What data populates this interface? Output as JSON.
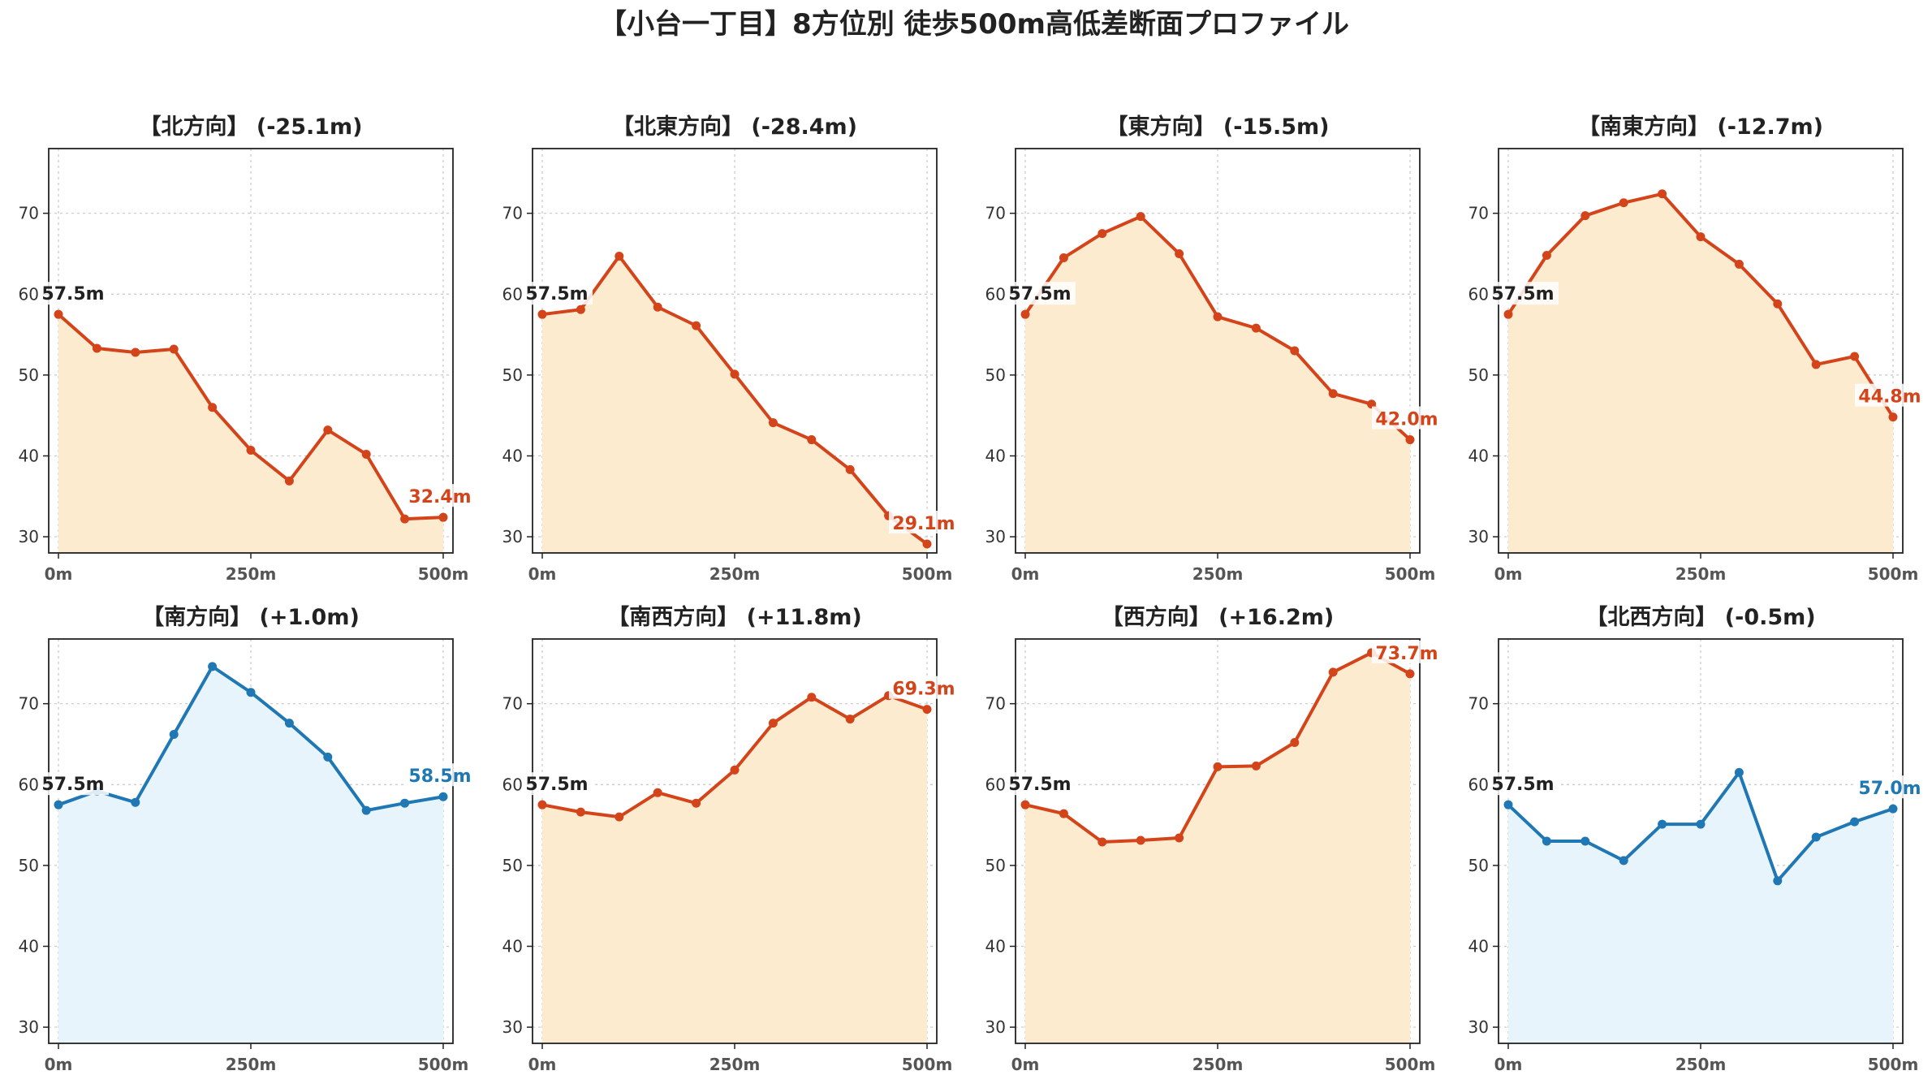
{
  "title": "【小台一丁目】8方位別 徒歩500m高低差断面プロファイル",
  "colors": {
    "down_line": "#d4441b",
    "down_fill": "#fdebd0",
    "up_line": "#1f77b4",
    "up_fill": "#e8f4fb",
    "start_label": "#222222"
  },
  "chart_data": [
    {
      "type": "area",
      "title": "【北方向】 (-25.1m)",
      "x_ticks": [
        "0m",
        "250m",
        "500m"
      ],
      "y_ticks": [
        "30",
        "40",
        "50",
        "60",
        "70"
      ],
      "ylim": [
        28,
        78
      ],
      "grid": true,
      "style": "down",
      "x": [
        0,
        50,
        100,
        150,
        200,
        250,
        300,
        350,
        400,
        450,
        500
      ],
      "values": [
        57.5,
        53.3,
        52.8,
        53.2,
        46.0,
        40.7,
        36.9,
        43.2,
        40.2,
        32.2,
        32.4
      ],
      "start_label": "57.5m",
      "end_label": "32.4m"
    },
    {
      "type": "area",
      "title": "【北東方向】 (-28.4m)",
      "x_ticks": [
        "0m",
        "250m",
        "500m"
      ],
      "y_ticks": [
        "30",
        "40",
        "50",
        "60",
        "70"
      ],
      "ylim": [
        28,
        78
      ],
      "grid": true,
      "style": "down",
      "x": [
        0,
        50,
        100,
        150,
        200,
        250,
        300,
        350,
        400,
        450,
        500
      ],
      "values": [
        57.5,
        58.1,
        64.7,
        58.4,
        56.1,
        50.1,
        44.1,
        42.0,
        38.3,
        32.6,
        29.1
      ],
      "start_label": "57.5m",
      "end_label": "29.1m"
    },
    {
      "type": "area",
      "title": "【東方向】 (-15.5m)",
      "x_ticks": [
        "0m",
        "250m",
        "500m"
      ],
      "y_ticks": [
        "30",
        "40",
        "50",
        "60",
        "70"
      ],
      "ylim": [
        28,
        78
      ],
      "grid": true,
      "style": "down",
      "x": [
        0,
        50,
        100,
        150,
        200,
        250,
        300,
        350,
        400,
        450,
        500
      ],
      "values": [
        57.5,
        64.5,
        67.5,
        69.6,
        65.0,
        57.2,
        55.8,
        53.0,
        47.7,
        46.4,
        42.0
      ],
      "start_label": "57.5m",
      "end_label": "42.0m"
    },
    {
      "type": "area",
      "title": "【南東方向】 (-12.7m)",
      "x_ticks": [
        "0m",
        "250m",
        "500m"
      ],
      "y_ticks": [
        "30",
        "40",
        "50",
        "60",
        "70"
      ],
      "ylim": [
        28,
        78
      ],
      "grid": true,
      "style": "down",
      "x": [
        0,
        50,
        100,
        150,
        200,
        250,
        300,
        350,
        400,
        450,
        500
      ],
      "values": [
        57.5,
        64.8,
        69.7,
        71.3,
        72.4,
        67.1,
        63.7,
        58.8,
        51.3,
        52.3,
        44.8
      ],
      "start_label": "57.5m",
      "end_label": "44.8m"
    },
    {
      "type": "area",
      "title": "【南方向】 (+1.0m)",
      "x_ticks": [
        "0m",
        "250m",
        "500m"
      ],
      "y_ticks": [
        "30",
        "40",
        "50",
        "60",
        "70"
      ],
      "ylim": [
        28,
        78
      ],
      "grid": true,
      "style": "up",
      "x": [
        0,
        50,
        100,
        150,
        200,
        250,
        300,
        350,
        400,
        450,
        500
      ],
      "values": [
        57.5,
        59.2,
        57.8,
        66.2,
        74.6,
        71.4,
        67.6,
        63.4,
        56.8,
        57.7,
        58.5
      ],
      "start_label": "57.5m",
      "end_label": "58.5m"
    },
    {
      "type": "area",
      "title": "【南西方向】 (+11.8m)",
      "x_ticks": [
        "0m",
        "250m",
        "500m"
      ],
      "y_ticks": [
        "30",
        "40",
        "50",
        "60",
        "70"
      ],
      "ylim": [
        28,
        78
      ],
      "grid": true,
      "style": "down",
      "x": [
        0,
        50,
        100,
        150,
        200,
        250,
        300,
        350,
        400,
        450,
        500
      ],
      "values": [
        57.5,
        56.6,
        56.0,
        59.0,
        57.7,
        61.8,
        67.6,
        70.8,
        68.1,
        71.0,
        69.3
      ],
      "start_label": "57.5m",
      "end_label": "69.3m"
    },
    {
      "type": "area",
      "title": "【西方向】 (+16.2m)",
      "x_ticks": [
        "0m",
        "250m",
        "500m"
      ],
      "y_ticks": [
        "30",
        "40",
        "50",
        "60",
        "70"
      ],
      "ylim": [
        28,
        78
      ],
      "grid": true,
      "style": "down",
      "x": [
        0,
        50,
        100,
        150,
        200,
        250,
        300,
        350,
        400,
        450,
        500
      ],
      "values": [
        57.5,
        56.4,
        52.9,
        53.1,
        53.4,
        62.2,
        62.3,
        65.2,
        73.9,
        76.3,
        73.7
      ],
      "start_label": "57.5m",
      "end_label": "73.7m"
    },
    {
      "type": "area",
      "title": "【北西方向】 (-0.5m)",
      "x_ticks": [
        "0m",
        "250m",
        "500m"
      ],
      "y_ticks": [
        "30",
        "40",
        "50",
        "60",
        "70"
      ],
      "ylim": [
        28,
        78
      ],
      "grid": true,
      "style": "up",
      "x": [
        0,
        50,
        100,
        150,
        200,
        250,
        300,
        350,
        400,
        450,
        500
      ],
      "values": [
        57.5,
        53.0,
        53.0,
        50.6,
        55.1,
        55.1,
        61.5,
        48.1,
        53.5,
        55.4,
        57.0
      ],
      "start_label": "57.5m",
      "end_label": "57.0m"
    }
  ]
}
